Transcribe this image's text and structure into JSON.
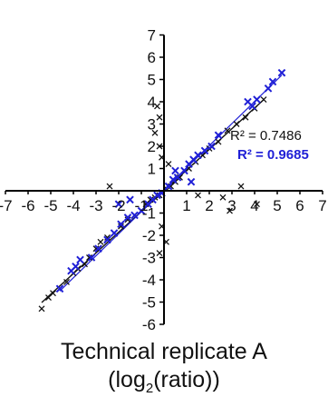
{
  "chart_data": {
    "type": "scatter",
    "xlabel_line1": "Technical replicate A",
    "xlabel_line2": {
      "open": "(log",
      "sub": "2",
      "close": "(ratio))"
    },
    "x_ticks": [
      "-7",
      "-6",
      "-5",
      "-4",
      "-3",
      "-2",
      "-1",
      "1",
      "2",
      "3",
      "4",
      "5",
      "6",
      "7"
    ],
    "y_ticks": [
      "7",
      "6",
      "5",
      "4",
      "3",
      "2",
      "1",
      "-1",
      "-2",
      "-3",
      "-4",
      "-5",
      "-6"
    ],
    "xlim": [
      -7,
      7
    ],
    "ylim": [
      -6,
      7
    ],
    "grid": false,
    "series": [
      {
        "color": "#111111",
        "marker": "x",
        "r2_label": "R² = 0.7486",
        "fit": {
          "slope": 0.93,
          "intercept": 0.0
        },
        "points": [
          [
            -5.4,
            -5.3
          ],
          [
            -5.1,
            -4.8
          ],
          [
            -4.9,
            -4.6
          ],
          [
            -4.6,
            -4.4
          ],
          [
            -4.3,
            -4.1
          ],
          [
            -4.0,
            -3.7
          ],
          [
            -3.8,
            -3.5
          ],
          [
            -3.5,
            -3.3
          ],
          [
            -3.3,
            -3.0
          ],
          [
            -3.0,
            -2.6
          ],
          [
            -2.8,
            -2.3
          ],
          [
            -2.5,
            -2.1
          ],
          [
            -2.2,
            -1.9
          ],
          [
            -1.9,
            -1.6
          ],
          [
            -1.6,
            -1.3
          ],
          [
            -1.3,
            -1.1
          ],
          [
            -1.0,
            -0.9
          ],
          [
            -0.8,
            -0.6
          ],
          [
            -0.6,
            -0.4
          ],
          [
            -0.4,
            -0.3
          ],
          [
            -0.2,
            -0.2
          ],
          [
            0.1,
            0.1
          ],
          [
            0.3,
            0.2
          ],
          [
            0.5,
            0.4
          ],
          [
            0.7,
            0.6
          ],
          [
            0.9,
            0.9
          ],
          [
            1.1,
            1.0
          ],
          [
            1.4,
            1.3
          ],
          [
            1.7,
            1.6
          ],
          [
            2.0,
            1.9
          ],
          [
            2.4,
            2.2
          ],
          [
            2.8,
            2.7
          ],
          [
            3.2,
            3.0
          ],
          [
            3.6,
            3.3
          ],
          [
            4.0,
            3.7
          ],
          [
            4.4,
            4.1
          ],
          [
            -0.3,
            3.8
          ],
          [
            -0.2,
            3.3
          ],
          [
            -0.4,
            2.6
          ],
          [
            -0.2,
            2.0
          ],
          [
            -0.1,
            1.5
          ],
          [
            0.2,
            1.2
          ],
          [
            -0.1,
            -1.6
          ],
          [
            0.1,
            -2.3
          ],
          [
            -0.2,
            -2.8
          ],
          [
            -2.4,
            0.2
          ],
          [
            1.5,
            -0.2
          ],
          [
            2.6,
            -0.3
          ],
          [
            3.4,
            0.2
          ],
          [
            4.1,
            -0.6
          ],
          [
            2.9,
            -0.9
          ]
        ]
      },
      {
        "color": "#1f1fd6",
        "marker": "x",
        "r2_label": "R² = 0.9685",
        "fit": {
          "slope": 0.99,
          "intercept": 0.05
        },
        "points": [
          [
            -4.6,
            -4.4
          ],
          [
            -4.1,
            -3.6
          ],
          [
            -3.9,
            -3.4
          ],
          [
            -3.7,
            -3.1
          ],
          [
            -3.2,
            -3.0
          ],
          [
            -2.9,
            -2.6
          ],
          [
            -2.5,
            -2.2
          ],
          [
            -2.2,
            -1.9
          ],
          [
            -1.9,
            -1.5
          ],
          [
            -1.6,
            -1.2
          ],
          [
            -1.3,
            -1.1
          ],
          [
            -1.0,
            -0.9
          ],
          [
            -0.7,
            -0.6
          ],
          [
            -0.5,
            -0.4
          ],
          [
            -0.3,
            -0.2
          ],
          [
            -0.1,
            -0.1
          ],
          [
            0.2,
            0.2
          ],
          [
            0.4,
            0.5
          ],
          [
            0.6,
            0.6
          ],
          [
            0.9,
            0.9
          ],
          [
            1.1,
            1.2
          ],
          [
            1.3,
            1.4
          ],
          [
            1.5,
            1.6
          ],
          [
            1.8,
            1.8
          ],
          [
            2.1,
            2.0
          ],
          [
            2.4,
            2.5
          ],
          [
            3.7,
            4.0
          ],
          [
            3.9,
            3.8
          ],
          [
            4.1,
            4.1
          ],
          [
            4.6,
            4.6
          ],
          [
            4.8,
            4.9
          ],
          [
            5.2,
            5.3
          ],
          [
            -1.5,
            -0.4
          ],
          [
            -2.0,
            -0.6
          ],
          [
            0.5,
            0.9
          ],
          [
            1.2,
            0.4
          ]
        ]
      }
    ]
  }
}
